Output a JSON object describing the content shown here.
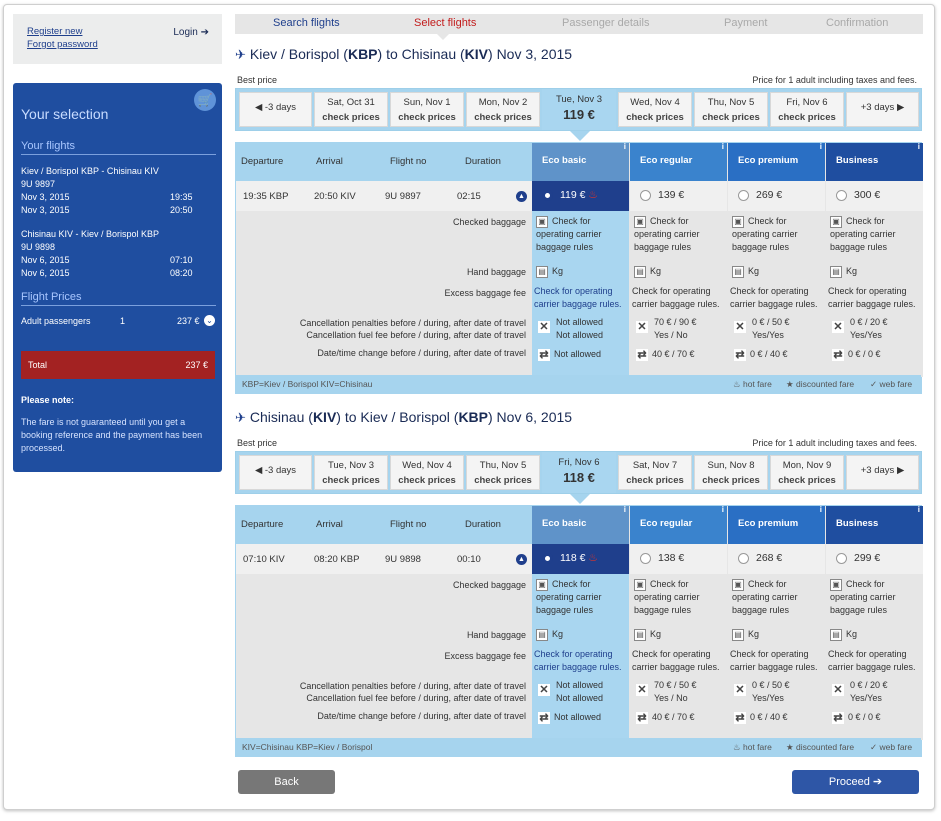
{
  "user": {
    "register": "Register new",
    "forgot": "Forgot password",
    "login": "Login"
  },
  "selection": {
    "title": "Your selection",
    "flights_heading": "Your flights",
    "out": {
      "route": "Kiev / Borispol KBP - Chisinau KIV",
      "flight": "9U 9897",
      "dep_date": "Nov 3, 2015",
      "dep_time": "19:35",
      "arr_date": "Nov 3, 2015",
      "arr_time": "20:50"
    },
    "ret": {
      "route": "Chisinau KIV - Kiev / Borispol KBP",
      "flight": "9U 9898",
      "dep_date": "Nov 6, 2015",
      "dep_time": "07:10",
      "arr_date": "Nov 6, 2015",
      "arr_time": "08:20"
    },
    "prices_heading": "Flight Prices",
    "adult_label": "Adult passengers",
    "adult_count": "1",
    "adult_price": "237 €",
    "total_label": "Total",
    "total_value": "237 €",
    "note_heading": "Please note:",
    "note_text": "The fare is not guaranteed until you get a booking reference and the payment has been processed."
  },
  "steps": [
    "Search flights",
    "Select flights",
    "Passenger details",
    "Payment",
    "Confirmation"
  ],
  "common": {
    "best_price": "Best price",
    "price_for": "Price for 1 adult including taxes and fees.",
    "col_departure": "Departure",
    "col_arrival": "Arrival",
    "col_flightno": "Flight no",
    "col_duration": "Duration",
    "fares": [
      "Eco basic",
      "Eco regular",
      "Eco premium",
      "Business"
    ],
    "fare_colors": [
      "#5f93c9",
      "#3a83cd",
      "#2a6fc4",
      "#1f4ea0"
    ],
    "lbl_checked": "Checked baggage",
    "lbl_hand": "Hand baggage",
    "lbl_excess": "Excess baggage fee",
    "lbl_cancel": "Cancellation penalties before / during, after date of travel",
    "lbl_fuel": "Cancellation fuel fee before / during, after date of travel",
    "lbl_change": "Date/time change before / during, after date of travel",
    "check_for": "Check for",
    "operating": "operating carrier",
    "baggage_rules": "baggage rules",
    "kg": "Kg",
    "check_operating": "Check for operating",
    "carrier_rules": "carrier baggage rules.",
    "not_allowed": "Not allowed",
    "hot": "hot fare",
    "discounted": "discounted fare",
    "web": "web fare",
    "back": "Back",
    "proceed": "Proceed"
  },
  "outbound": {
    "route_from": "Kiev / Borispol (",
    "from_code": "KBP",
    "route_mid": ") to Chisinau (",
    "to_code": "KIV",
    "route_end": ") Nov 3, 2015",
    "prev": "-3 days",
    "next": "+3 days",
    "dates": [
      {
        "d": "Sat, Oct 31",
        "p": "check prices"
      },
      {
        "d": "Sun, Nov 1",
        "p": "check prices"
      },
      {
        "d": "Mon, Nov 2",
        "p": "check prices"
      },
      {
        "d": "Tue, Nov 3",
        "p": "119 €"
      },
      {
        "d": "Wed, Nov 4",
        "p": "check prices"
      },
      {
        "d": "Thu, Nov 5",
        "p": "check prices"
      },
      {
        "d": "Fri, Nov 6",
        "p": "check prices"
      }
    ],
    "dep": "19:35 KBP",
    "arr": "20:50 KIV",
    "flight": "9U 9897",
    "duration": "02:15",
    "prices": [
      "119 €",
      "139 €",
      "269 €",
      "300 €"
    ],
    "cancel": [
      [
        "Not allowed",
        "Not allowed"
      ],
      [
        "70 € / 90 €",
        "Yes / No"
      ],
      [
        "0 € / 50 €",
        "Yes/Yes"
      ],
      [
        "0 € / 20 €",
        "Yes/Yes"
      ]
    ],
    "change": [
      "Not allowed",
      "40 € / 70 €",
      "0 € / 40 €",
      "0 € / 0 €"
    ],
    "footer": "KBP=Kiev / Borispol    KIV=Chisinau"
  },
  "inbound": {
    "route_from": "Chisinau (",
    "from_code": "KIV",
    "route_mid": ") to Kiev / Borispol (",
    "to_code": "KBP",
    "route_end": ") Nov 6, 2015",
    "prev": "-3 days",
    "next": "+3 days",
    "dates": [
      {
        "d": "Tue, Nov 3",
        "p": "check prices"
      },
      {
        "d": "Wed, Nov 4",
        "p": "check prices"
      },
      {
        "d": "Thu, Nov 5",
        "p": "check prices"
      },
      {
        "d": "Fri, Nov 6",
        "p": "118 €"
      },
      {
        "d": "Sat, Nov 7",
        "p": "check prices"
      },
      {
        "d": "Sun, Nov 8",
        "p": "check prices"
      },
      {
        "d": "Mon, Nov 9",
        "p": "check prices"
      }
    ],
    "dep": "07:10 KIV",
    "arr": "08:20 KBP",
    "flight": "9U 9898",
    "duration": "00:10",
    "prices": [
      "118 €",
      "138 €",
      "268 €",
      "299 €"
    ],
    "cancel": [
      [
        "Not allowed",
        "Not allowed"
      ],
      [
        "70 € / 50 €",
        "Yes / No"
      ],
      [
        "0 € / 50 €",
        "Yes/Yes"
      ],
      [
        "0 € / 20 €",
        "Yes/Yes"
      ]
    ],
    "change": [
      "Not allowed",
      "40 € / 70 €",
      "0 € / 40 €",
      "0 € / 0 €"
    ],
    "footer": "KIV=Chisinau    KBP=Kiev / Borispol"
  }
}
